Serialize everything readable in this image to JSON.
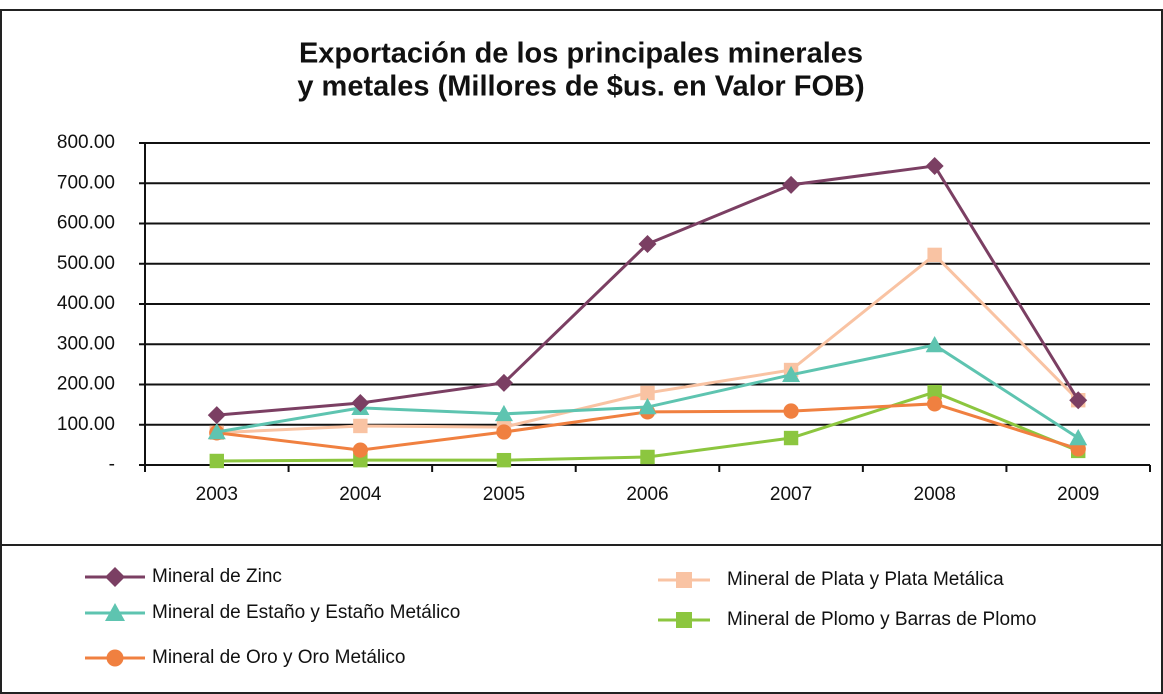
{
  "chart_data": {
    "type": "line",
    "title": [
      "Exportación de los principales minerales",
      "y metales (Millores de $us. en Valor FOB)"
    ],
    "categories": [
      "2003",
      "2004",
      "2005",
      "2006",
      "2007",
      "2008",
      "2009"
    ],
    "ylim": [
      0,
      800
    ],
    "yticks": [
      {
        "value": 0,
        "label": "-"
      },
      {
        "value": 100,
        "label": "100.00"
      },
      {
        "value": 200,
        "label": "200.00"
      },
      {
        "value": 300,
        "label": "300.00"
      },
      {
        "value": 400,
        "label": "400.00"
      },
      {
        "value": 500,
        "label": "500.00"
      },
      {
        "value": 600,
        "label": "600.00"
      },
      {
        "value": 700,
        "label": "700.00"
      },
      {
        "value": 800,
        "label": "800.00"
      }
    ],
    "grid": true,
    "series": [
      {
        "name": "Mineral de Zinc",
        "color": "#7b3f63",
        "marker": "diamond",
        "values": [
          124,
          154,
          204,
          549,
          696,
          743,
          161
        ]
      },
      {
        "name": "Mineral de Estaño y Estaño Metálico",
        "color": "#5ec4b0",
        "marker": "triangle",
        "values": [
          82,
          142,
          127,
          144,
          224,
          298,
          67
        ]
      },
      {
        "name": "Mineral de Oro y Oro Metálico",
        "color": "#f08040",
        "marker": "circle",
        "values": [
          80,
          37,
          82,
          132,
          134,
          152,
          40
        ]
      },
      {
        "name": "Mineral de Plata y Plata Metálica",
        "color": "#f9c3a3",
        "marker": "square",
        "values": [
          80,
          97,
          94,
          179,
          236,
          522,
          161
        ]
      },
      {
        "name": "Mineral de Plomo y Barras de Plomo",
        "color": "#8cc63f",
        "marker": "square",
        "values": [
          10,
          12,
          12,
          20,
          67,
          181,
          35
        ]
      }
    ]
  }
}
